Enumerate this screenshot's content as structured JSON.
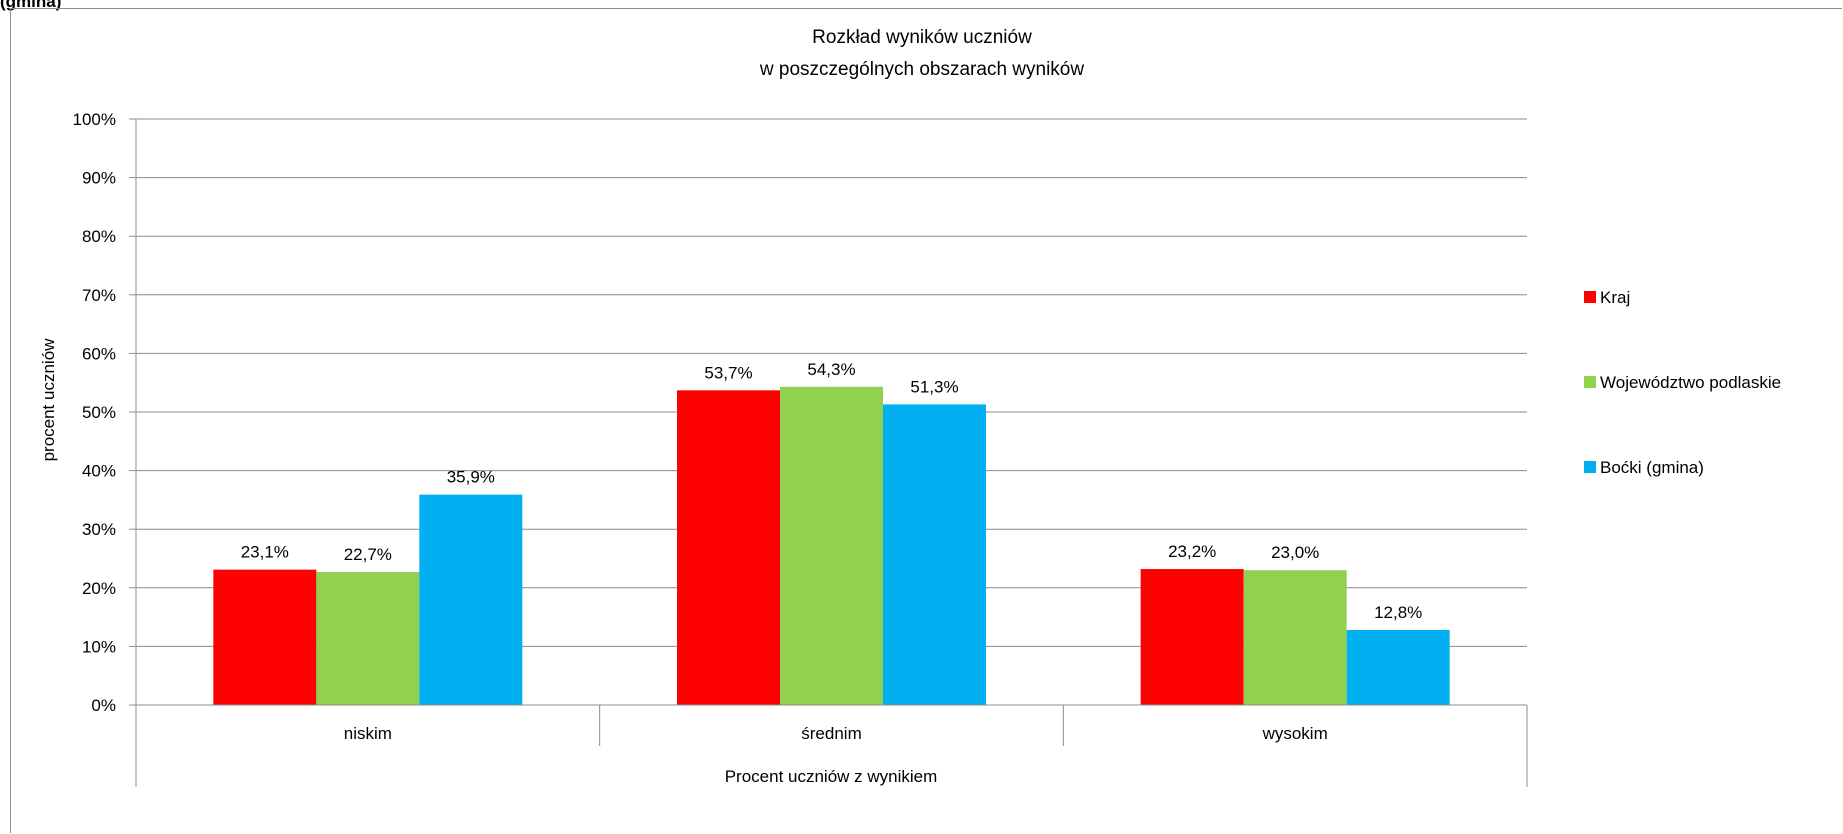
{
  "header_fragment": "(gmina)",
  "chart_data": {
    "type": "bar",
    "title": "Rozkład wyników uczniów",
    "subtitle": "w poszczególnych obszarach wyników",
    "xlabel": "Procent uczniów z wynikiem",
    "ylabel": "procent uczniów",
    "categories": [
      "niskim",
      "średnim",
      "wysokim"
    ],
    "ylim": [
      0,
      100
    ],
    "y_ticks": [
      "0%",
      "10%",
      "20%",
      "30%",
      "40%",
      "50%",
      "60%",
      "70%",
      "80%",
      "90%",
      "100%"
    ],
    "grid": true,
    "legend_position": "right",
    "series": [
      {
        "name": "Kraj",
        "color": "#ff0000",
        "values": [
          23.1,
          53.7,
          23.2
        ],
        "labels": [
          "23,1%",
          "53,7%",
          "23,2%"
        ]
      },
      {
        "name": "Województwo podlaskie",
        "color": "#92d050",
        "values": [
          22.7,
          54.3,
          23.0
        ],
        "labels": [
          "22,7%",
          "54,3%",
          "23,0%"
        ]
      },
      {
        "name": "Boćki (gmina)",
        "color": "#00b0f0",
        "values": [
          35.9,
          51.3,
          12.8
        ],
        "labels": [
          "35,9%",
          "51,3%",
          "12,8%"
        ]
      }
    ]
  }
}
